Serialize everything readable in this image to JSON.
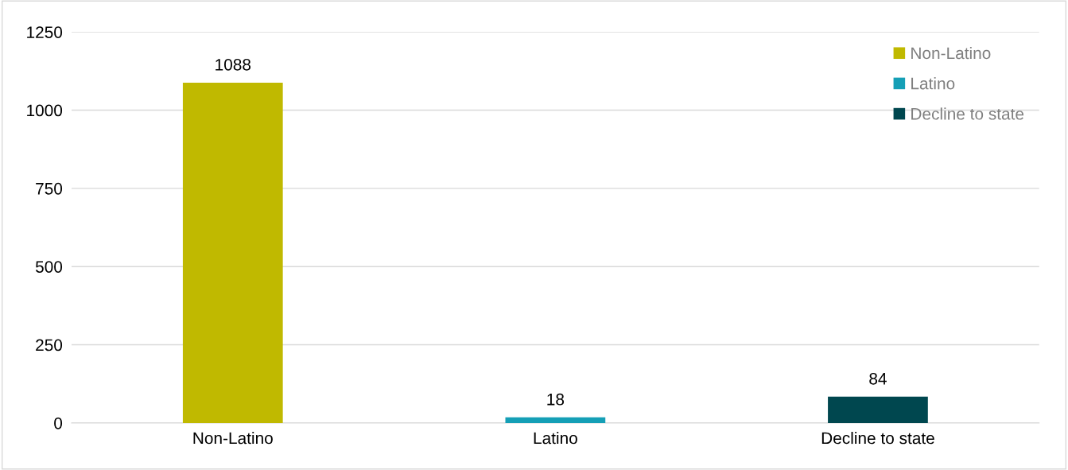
{
  "chart_data": {
    "type": "bar",
    "categories": [
      "Non-Latino",
      "Latino",
      "Decline to state"
    ],
    "series": [
      {
        "name": "Non-Latino",
        "color": "#c0b900",
        "values": [
          1088,
          null,
          null
        ]
      },
      {
        "name": "Latino",
        "color": "#159fb6",
        "values": [
          null,
          18,
          null
        ]
      },
      {
        "name": "Decline to state",
        "color": "#00474f",
        "values": [
          null,
          null,
          84
        ]
      }
    ],
    "ylim": [
      0,
      1250
    ],
    "yticks": [
      0,
      250,
      500,
      750,
      1000,
      1250
    ],
    "grid": "y",
    "legend": "top right",
    "data_labels": true
  }
}
